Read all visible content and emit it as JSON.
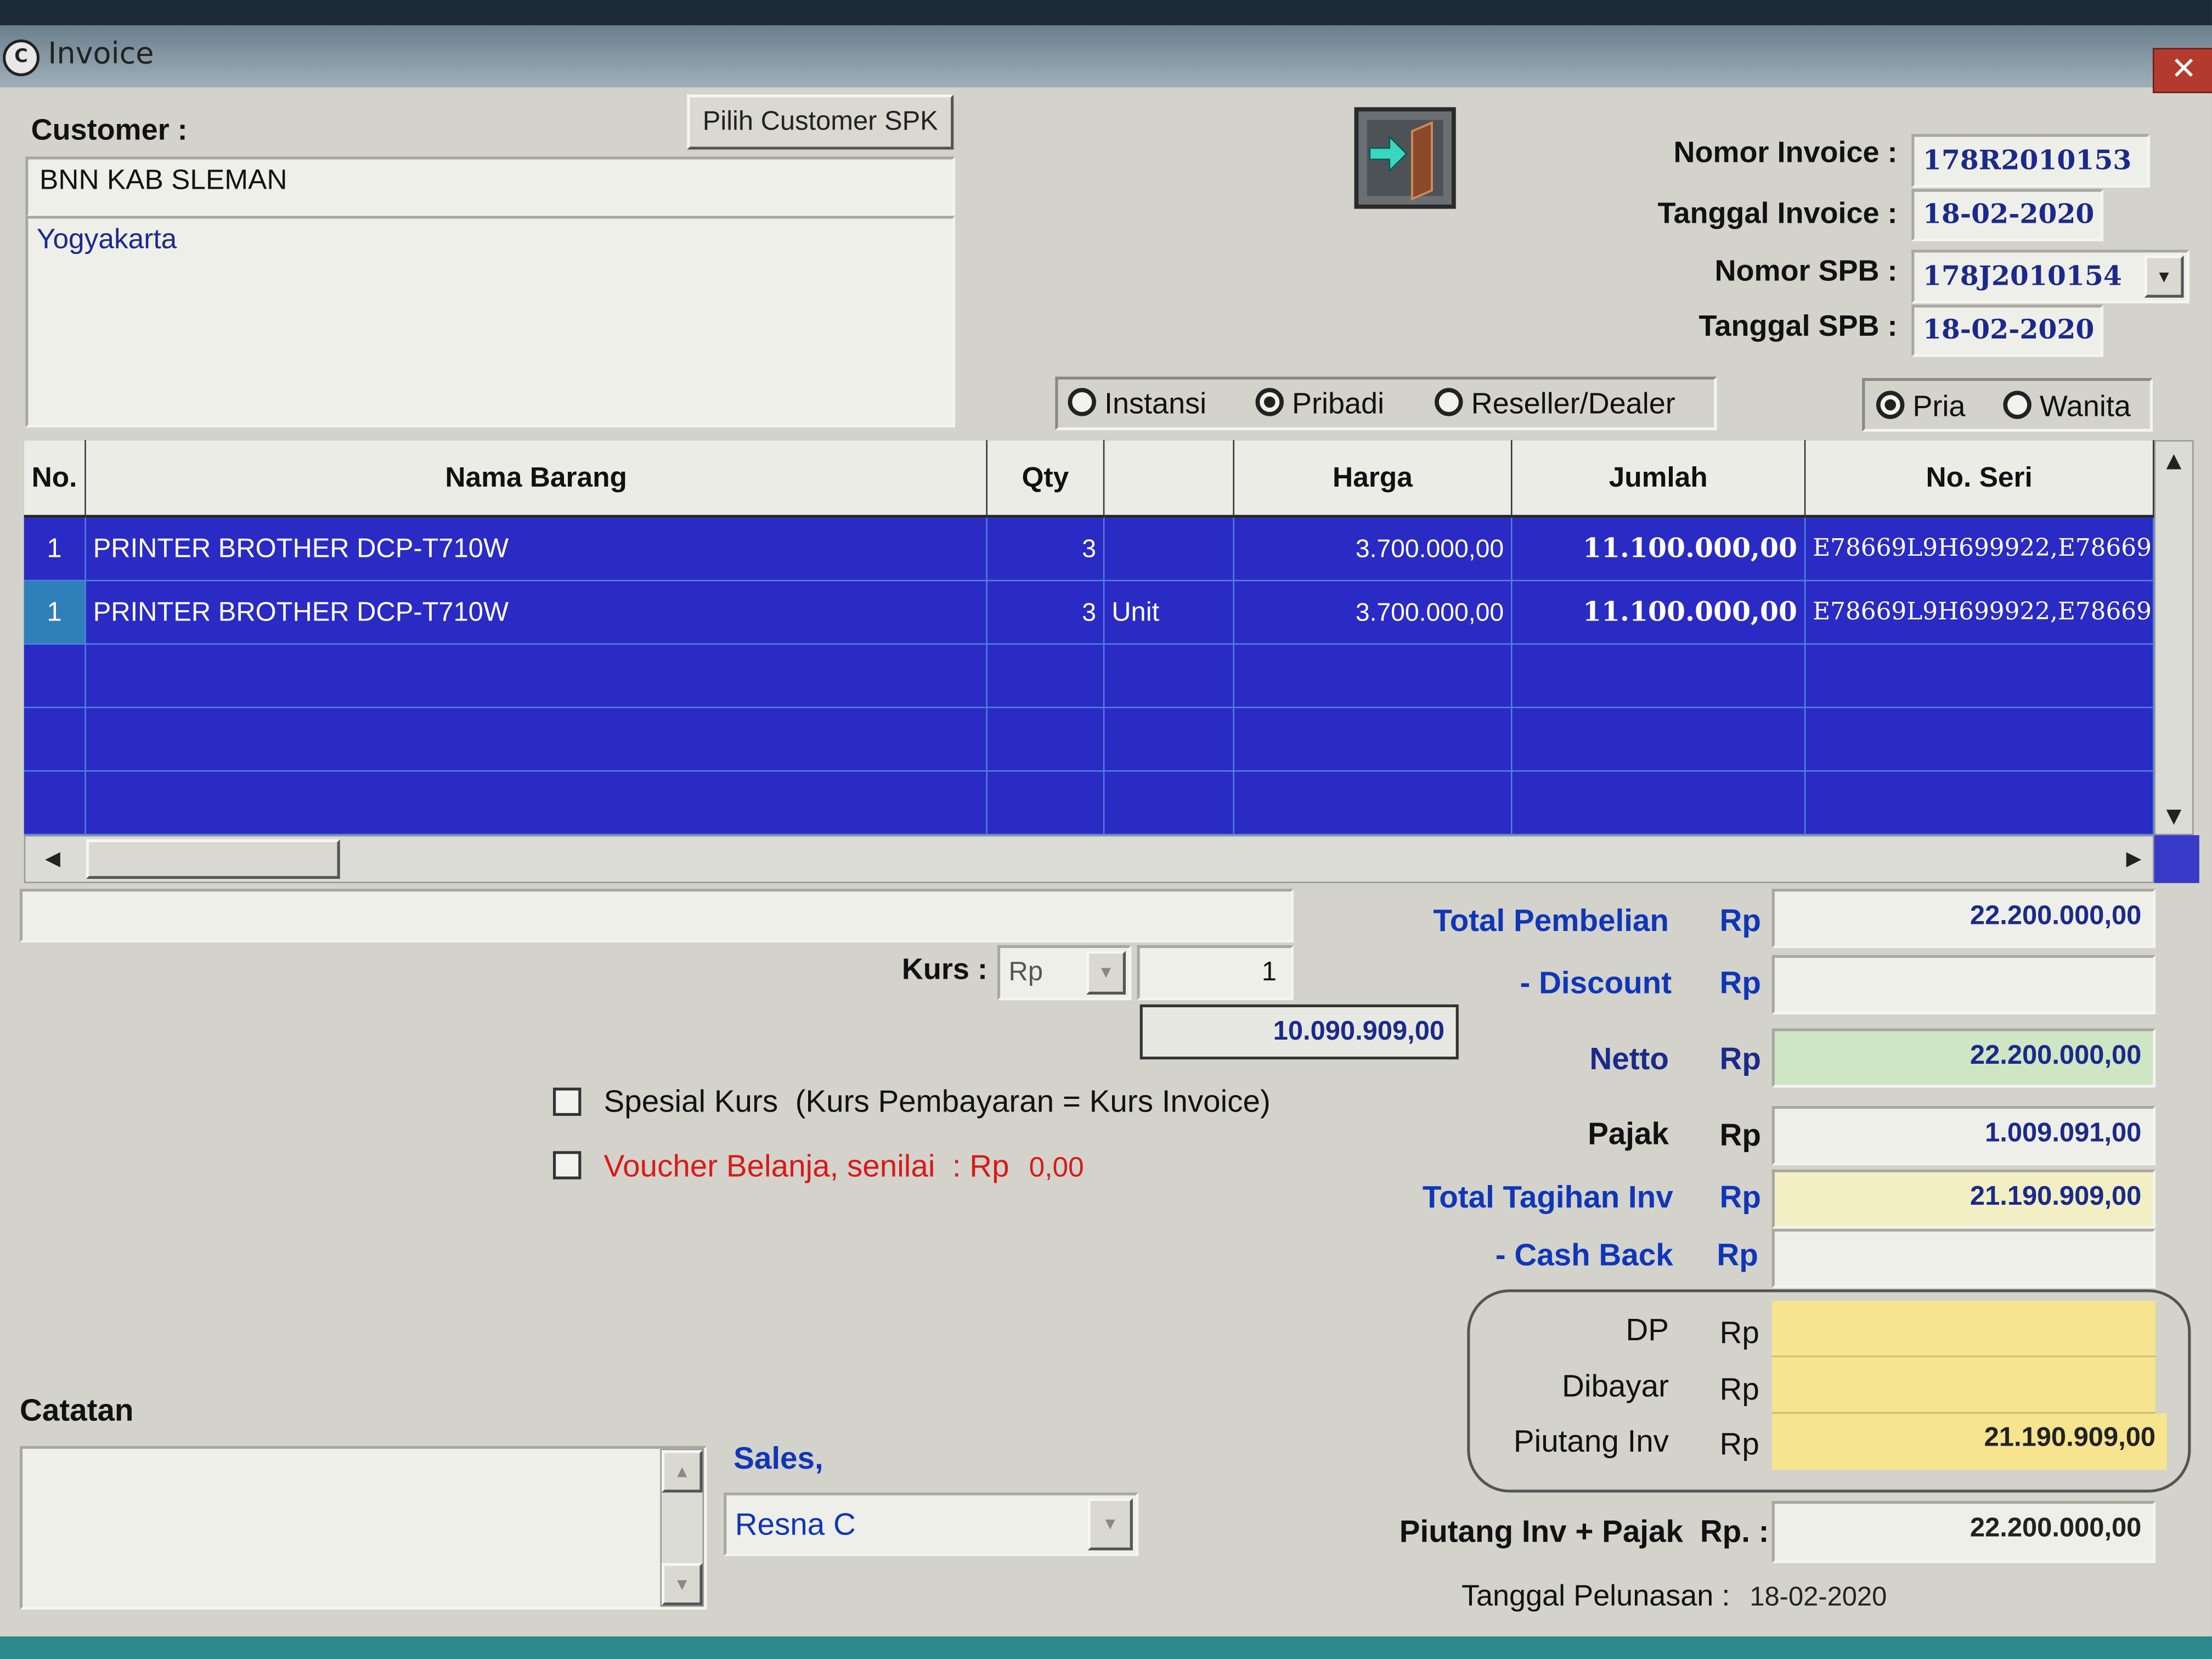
{
  "window": {
    "title": "Invoice",
    "close_label": "✕"
  },
  "customer": {
    "label": "Customer :",
    "pick_button": "Pilih Customer SPK",
    "name": "BNN KAB SLEMAN",
    "address": "Yogyakarta"
  },
  "header_fields": {
    "nomor_invoice_label": "Nomor Invoice :",
    "nomor_invoice": "178R2010153",
    "tanggal_invoice_label": "Tanggal Invoice :",
    "tanggal_invoice": "18-02-2020",
    "nomor_spb_label": "Nomor SPB :",
    "nomor_spb": "178J2010154",
    "tanggal_spb_label": "Tanggal SPB :",
    "tanggal_spb": "18-02-2020"
  },
  "customer_type": {
    "options": [
      "Instansi",
      "Pribadi",
      "Reseller/Dealer"
    ],
    "selected": "Pribadi"
  },
  "gender": {
    "options": [
      "Pria",
      "Wanita"
    ],
    "selected": "Pria"
  },
  "table": {
    "columns": [
      "No.",
      "Nama Barang",
      "Qty",
      "",
      "Harga",
      "Jumlah",
      "No. Seri"
    ],
    "rows": [
      {
        "no": "1",
        "nama": "PRINTER BROTHER DCP-T710W",
        "qty": "3",
        "unit": "",
        "harga": "3.700.000,00",
        "jumlah": "11.100.000,00",
        "seri": "E78669L9H699922,E78669L9I"
      },
      {
        "no": "1",
        "nama": "PRINTER BROTHER DCP-T710W",
        "qty": "3",
        "unit": "Unit",
        "harga": "3.700.000,00",
        "jumlah": "11.100.000,00",
        "seri": "E78669L9H699922,E78669L9I"
      }
    ]
  },
  "kurs": {
    "label": "Kurs :",
    "currency": "Rp",
    "rate": "1",
    "converted": "10.090.909,00"
  },
  "options": {
    "spesial_kurs": "Spesial Kurs  (Kurs Pembayaran = Kurs Invoice)",
    "voucher": "Voucher Belanja, senilai  : Rp",
    "voucher_value": "0,00"
  },
  "catatan": {
    "label": "Catatan",
    "value": ""
  },
  "sales": {
    "label": "Sales,",
    "value": "Resna C"
  },
  "totals": {
    "currency": "Rp",
    "total_pembelian_label": "Total Pembelian",
    "total_pembelian": "22.200.000,00",
    "discount_label": "- Discount",
    "discount": "",
    "netto_label": "Netto",
    "netto": "22.200.000,00",
    "pajak_label": "Pajak",
    "pajak": "1.009.091,00",
    "total_tagihan_label": "Total Tagihan Inv",
    "total_tagihan": "21.190.909,00",
    "cash_back_label": "- Cash Back",
    "cash_back": "",
    "dp_label": "DP",
    "dp": "",
    "dibayar_label": "Dibayar",
    "dibayar": "",
    "piutang_label": "Piutang Inv",
    "piutang": "21.190.909,00",
    "piutang_pajak_label": "Piutang Inv + Pajak",
    "piutang_pajak_currency": "Rp. :",
    "piutang_pajak": "22.200.000,00",
    "tanggal_pelunasan_label": "Tanggal Pelunasan :",
    "tanggal_pelunasan": "18-02-2020"
  },
  "colors": {
    "grid_bg": "#2a2ac4",
    "netto_bg": "#cfe6c4",
    "tagihan_bg": "#f3efc4",
    "piutang_bg": "#f6e48e",
    "label_blue": "#1036b8",
    "voucher_red": "#d81a1a"
  }
}
